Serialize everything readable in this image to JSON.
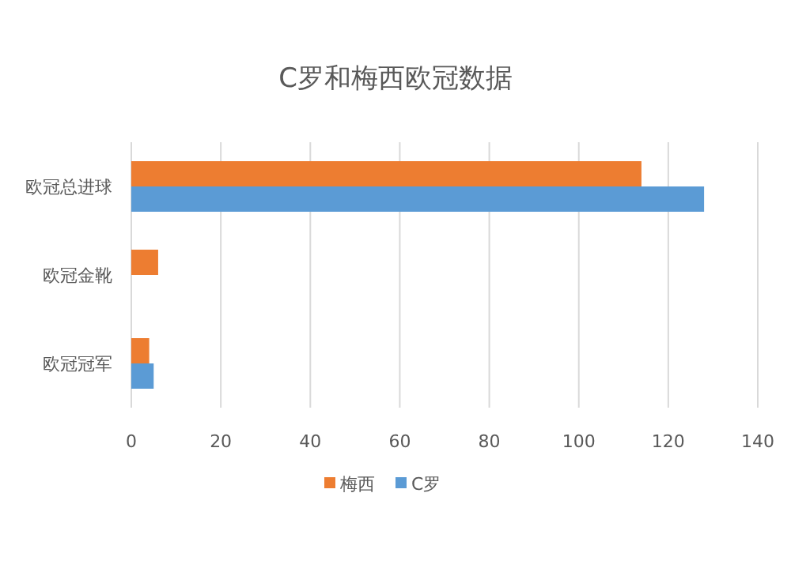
{
  "chart_data": {
    "type": "bar",
    "orientation": "horizontal",
    "title": "C罗和梅西欧冠数据",
    "categories": [
      "欧冠总进球",
      "欧冠金靴",
      "欧冠冠军"
    ],
    "series": [
      {
        "name": "梅西",
        "color": "#ed7d31",
        "values": [
          114,
          6,
          4
        ]
      },
      {
        "name": "C罗",
        "color": "#5b9bd5",
        "values": [
          128,
          null,
          5
        ]
      }
    ],
    "xlim": [
      0,
      140
    ],
    "xticks": [
      0,
      20,
      40,
      60,
      80,
      100,
      120,
      140
    ],
    "grid": "x",
    "legend": "bottom"
  }
}
